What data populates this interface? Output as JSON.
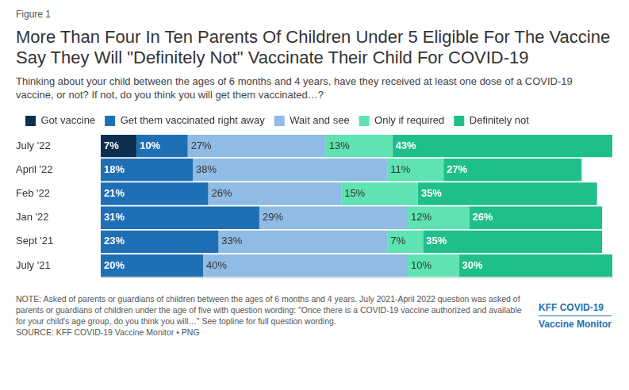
{
  "chart_data": {
    "type": "bar",
    "figure_label": "Figure 1",
    "title": "More Than Four In Ten Parents Of Children Under 5 Eligible For The Vaccine Say They Will \"Definitely Not\" Vaccinate Their Child For COVID-19",
    "subtitle": "Thinking about your child between the ages of 6 months and 4 years, have they received at least one dose of a COVID-19 vaccine, or not? If not, do you think you will get them vaccinated…?",
    "note": "NOTE: Asked of parents or guardians of children between the ages of 6 months and 4 years. July 2021-April 2022 question was asked of parents or guardians of children under the age of five with question wording: \"Once there is a COVID-19 vaccine authorized and available for your child's age group, do you think you will…\" See topline for full question wording.",
    "source": "SOURCE: KFF COVID-19 Vaccine Monitor • PNG",
    "branding": [
      "KFF COVID-19",
      "Vaccine Monitor"
    ],
    "orientation": "horizontal",
    "stacked": true,
    "data_labels": true,
    "grid": false,
    "legend": "top",
    "tick_labels": "y",
    "categories": [
      "July '22",
      "April '22",
      "Feb '22",
      "Jan '22",
      "Sept '21",
      "July '21"
    ],
    "xlim": [
      0,
      100
    ],
    "series": [
      {
        "name": "Got vaccine",
        "color": "#0d2f4f",
        "values": [
          7,
          null,
          null,
          null,
          null,
          null
        ],
        "value_labels": [
          "7%",
          null,
          null,
          null,
          null,
          null
        ]
      },
      {
        "name": "Get them vaccinated right away",
        "color": "#1f6fb5",
        "values": [
          10,
          18,
          21,
          31,
          23,
          20
        ],
        "value_labels": [
          "10%",
          "18%",
          "21%",
          "31%",
          "23%",
          "20%"
        ]
      },
      {
        "name": "Wait and see",
        "color": "#8fbbe5",
        "values": [
          27,
          38,
          26,
          29,
          33,
          40
        ],
        "value_labels": [
          "27%",
          "38%",
          "26%",
          "29%",
          "33%",
          "40%"
        ]
      },
      {
        "name": "Only if required",
        "color": "#5fe3b2",
        "values": [
          13,
          11,
          15,
          12,
          7,
          10
        ],
        "value_labels": [
          "13%",
          "11%",
          "15%",
          "12%",
          "7%",
          "10%"
        ]
      },
      {
        "name": "Definitely not",
        "color": "#1fbf8b",
        "values": [
          43,
          27,
          35,
          26,
          35,
          30
        ],
        "value_labels": [
          "43%",
          "27%",
          "35%",
          "26%",
          "35%",
          "30%"
        ]
      }
    ]
  }
}
